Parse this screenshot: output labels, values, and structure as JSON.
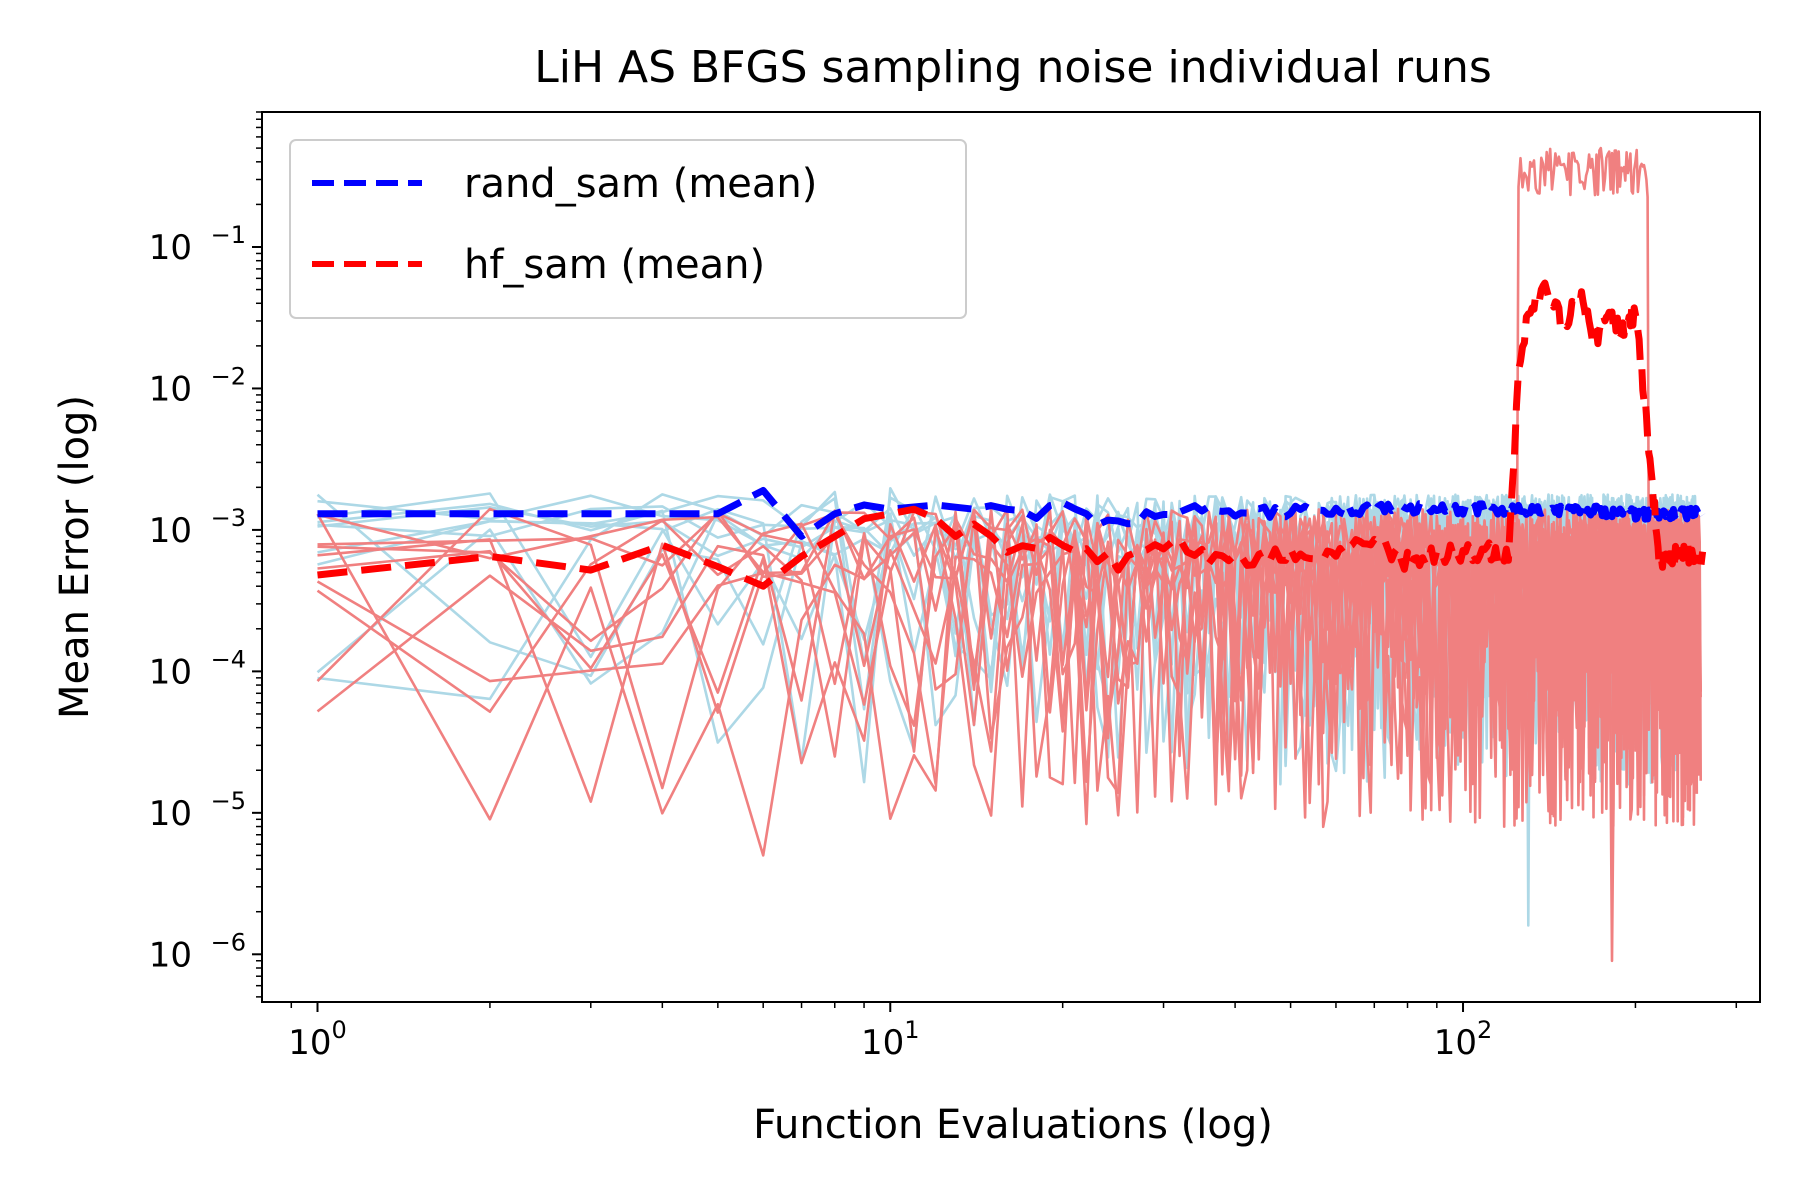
{
  "chart_data": {
    "type": "line",
    "title": "LiH AS BFGS sampling noise individual runs",
    "xlabel": "Function Evaluations (log)",
    "ylabel": "Mean Error (log)",
    "xscale": "log",
    "yscale": "log",
    "xlim": [
      0.8,
      330
    ],
    "ylim": [
      4.6e-07,
      0.9
    ],
    "grid": false,
    "legend_position": "upper-left",
    "x_ticks": [
      {
        "value": 1,
        "base": "10",
        "exp": "0"
      },
      {
        "value": 10,
        "base": "10",
        "exp": "1"
      },
      {
        "value": 100,
        "base": "10",
        "exp": "2"
      }
    ],
    "y_ticks": [
      {
        "value": 1e-06,
        "base": "10",
        "exp": "−6"
      },
      {
        "value": 1e-05,
        "base": "10",
        "exp": "−5"
      },
      {
        "value": 0.0001,
        "base": "10",
        "exp": "−4"
      },
      {
        "value": 0.001,
        "base": "10",
        "exp": "−3"
      },
      {
        "value": 0.01,
        "base": "10",
        "exp": "−2"
      },
      {
        "value": 0.1,
        "base": "10",
        "exp": "−1"
      }
    ],
    "legend": [
      {
        "name": "rand_sam (mean)",
        "color": "#0000ff",
        "style": "dashed"
      },
      {
        "name": "hf_sam (mean)",
        "color": "#ff0000",
        "style": "dashed"
      }
    ],
    "colors": {
      "rand_individual": "#add8e6",
      "hf_individual": "#f08080",
      "rand_mean": "#0000ff",
      "hf_mean": "#ff0000"
    },
    "series": [
      {
        "name": "rand_sam (mean)",
        "x": [
          1,
          2,
          3,
          4,
          5,
          6,
          7,
          8,
          9,
          10,
          12,
          14,
          16,
          18,
          20,
          22,
          25,
          30,
          40,
          60,
          100,
          150,
          200,
          260
        ],
        "values": [
          0.0013,
          0.0013,
          0.0013,
          0.0013,
          0.0013,
          0.0019,
          0.0009,
          0.0013,
          0.0015,
          0.0014,
          0.0015,
          0.0014,
          0.0015,
          0.0012,
          0.0016,
          0.0012,
          0.0011,
          0.0014,
          0.0013,
          0.0014,
          0.0014,
          0.0014,
          0.0013,
          0.0013
        ]
      },
      {
        "name": "hf_sam (mean)",
        "x": [
          1,
          2,
          3,
          4,
          5,
          6,
          7,
          8,
          9,
          10,
          11,
          12,
          13,
          14,
          15,
          17,
          20,
          25,
          30,
          40,
          50,
          60,
          70,
          80,
          100,
          120,
          125,
          130,
          140,
          150,
          160,
          170,
          180,
          190,
          200,
          210,
          220,
          240,
          260
        ],
        "values": [
          0.00048,
          0.00065,
          0.00052,
          0.00078,
          0.00055,
          0.0004,
          0.00065,
          0.0009,
          0.0012,
          0.0013,
          0.0014,
          0.0012,
          0.0009,
          0.0011,
          0.0008,
          0.0007,
          0.0008,
          0.0006,
          0.0008,
          0.0006,
          0.0007,
          0.0007,
          0.0008,
          0.0006,
          0.0007,
          0.0007,
          0.012,
          0.035,
          0.05,
          0.028,
          0.045,
          0.022,
          0.035,
          0.025,
          0.035,
          0.005,
          0.0006,
          0.0007,
          0.0006
        ]
      }
    ],
    "individual_runs": {
      "rand_sam": {
        "count": 10,
        "x_max": 260,
        "typical_range": [
          2e-05,
          0.003
        ],
        "minimum": 1.6e-06
      },
      "hf_sam": {
        "count": 10,
        "x_max": 260,
        "typical_range": [
          1e-05,
          0.002
        ],
        "minimum": 9e-07,
        "spike_x_range": [
          125,
          210
        ],
        "spike_peak": 0.5
      }
    }
  }
}
